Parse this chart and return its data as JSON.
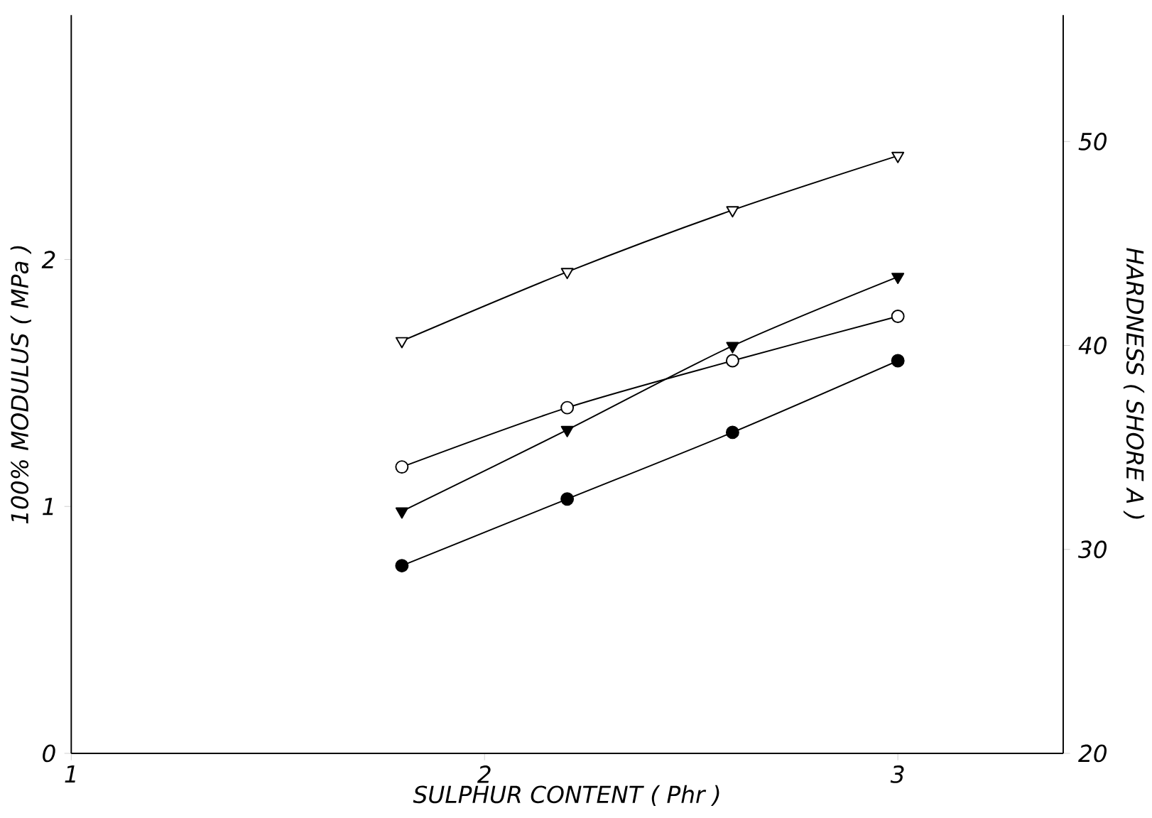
{
  "chart_data": {
    "type": "line",
    "xlabel": "SULPHUR CONTENT ( Phr )",
    "ylabel": "100% MODULUS ( MPa )",
    "y2label": "HARDNESS ( SHORE A )",
    "xlim": [
      1,
      3.4
    ],
    "xticks": [
      1,
      2,
      3
    ],
    "ylim": [
      0,
      2.99
    ],
    "yticks": [
      0,
      1,
      2
    ],
    "y2lim": [
      20,
      56.2
    ],
    "y2ticks": [
      20,
      30,
      40,
      50
    ],
    "grid": false,
    "series": [
      {
        "color": "#000000",
        "marker": "triangle",
        "x": [
          1.8,
          2.2,
          2.6,
          3.0
        ],
        "values": [
          1.67,
          1.95,
          2.2,
          2.42
        ]
      },
      {
        "color": "#000000",
        "marker": "triangle",
        "x": [
          1.8,
          2.2,
          2.6,
          3.0
        ],
        "values": [
          0.98,
          1.31,
          1.65,
          1.93
        ]
      },
      {
        "color": "#000000",
        "marker": "circle",
        "x": [
          1.8,
          2.2,
          2.6,
          3.0
        ],
        "values": [
          1.16,
          1.4,
          1.59,
          1.77
        ]
      },
      {
        "color": "#000000",
        "marker": "circle",
        "x": [
          1.8,
          2.2,
          2.6,
          3.0
        ],
        "values": [
          0.76,
          1.03,
          1.3,
          1.59
        ]
      }
    ]
  }
}
